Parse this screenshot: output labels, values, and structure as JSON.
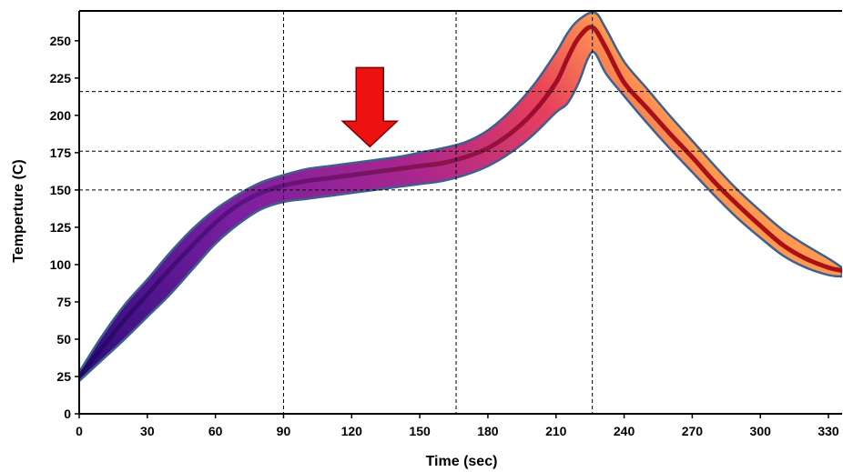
{
  "chart_data": {
    "type": "area",
    "title": "",
    "xlabel": "Time (sec)",
    "ylabel": "Temperture (C)",
    "xlim": [
      0,
      336
    ],
    "ylim": [
      0,
      270
    ],
    "xticks": [
      0,
      30,
      60,
      90,
      120,
      150,
      180,
      210,
      240,
      270,
      300,
      330
    ],
    "yticks": [
      0,
      25,
      50,
      75,
      100,
      125,
      150,
      175,
      200,
      225,
      250
    ],
    "grid": {
      "vertical_x": [
        90,
        166,
        226
      ],
      "horizontal_y": [
        150,
        176,
        216
      ]
    },
    "series": [
      {
        "role": "center",
        "x": [
          0,
          10,
          20,
          30,
          40,
          50,
          60,
          70,
          80,
          90,
          100,
          110,
          120,
          130,
          140,
          150,
          160,
          170,
          180,
          190,
          200,
          210,
          215,
          220,
          226,
          232,
          240,
          250,
          260,
          270,
          280,
          290,
          300,
          310,
          320,
          330,
          336
        ],
        "y": [
          25,
          44,
          63,
          80,
          97,
          113,
          128,
          140,
          148,
          153,
          156,
          158,
          160,
          162,
          164,
          166,
          168,
          172,
          178,
          188,
          202,
          222,
          238,
          252,
          259,
          245,
          222,
          205,
          188,
          172,
          155,
          140,
          126,
          113,
          104,
          98,
          96
        ]
      },
      {
        "role": "upper",
        "x": [
          0,
          10,
          20,
          30,
          40,
          50,
          60,
          70,
          80,
          90,
          100,
          110,
          120,
          130,
          140,
          150,
          160,
          170,
          180,
          190,
          200,
          210,
          215,
          220,
          227,
          232,
          240,
          250,
          260,
          270,
          280,
          290,
          300,
          310,
          320,
          330,
          336
        ],
        "y": [
          28,
          52,
          73,
          90,
          108,
          124,
          137,
          147,
          155,
          160,
          164,
          166,
          168,
          170,
          172,
          175,
          178,
          182,
          190,
          203,
          220,
          242,
          255,
          264,
          269,
          258,
          236,
          218,
          200,
          183,
          166,
          150,
          136,
          123,
          113,
          104,
          98
        ]
      },
      {
        "role": "lower",
        "x": [
          0,
          10,
          20,
          30,
          40,
          50,
          60,
          70,
          80,
          90,
          100,
          110,
          120,
          130,
          140,
          150,
          160,
          170,
          180,
          190,
          200,
          210,
          215,
          220,
          224,
          227,
          232,
          240,
          250,
          260,
          270,
          280,
          290,
          300,
          310,
          320,
          330,
          336
        ],
        "y": [
          22,
          36,
          50,
          65,
          80,
          97,
          114,
          127,
          137,
          142,
          144,
          146,
          148,
          150,
          152,
          154,
          156,
          160,
          166,
          175,
          187,
          202,
          208,
          222,
          238,
          242,
          228,
          213,
          195,
          178,
          162,
          146,
          131,
          118,
          106,
          98,
          93,
          92
        ]
      }
    ],
    "annotation": {
      "type": "arrow",
      "direction": "down",
      "x": 128,
      "y_top": 232,
      "y_tip": 179,
      "color": "#ee1111"
    }
  }
}
